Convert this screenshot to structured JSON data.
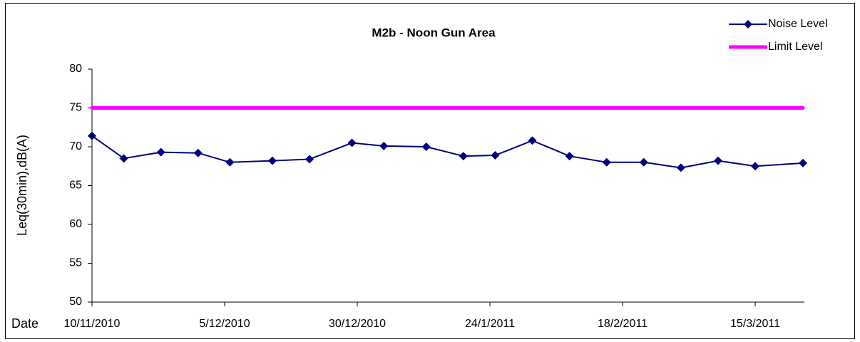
{
  "chart_data": {
    "type": "line",
    "title": "M2b - Noon Gun Area",
    "y_label": "Leq(30min),dB(A)",
    "x_label": "Date",
    "series": [
      {
        "name": "Noise Level",
        "color": "#000080",
        "marker": "diamond",
        "x": [
          "10/11/2010",
          "16/11/2010",
          "23/11/2010",
          "30/11/2010",
          "6/12/2010",
          "14/12/2010",
          "21/12/2010",
          "29/12/2010",
          "4/1/2011",
          "12/1/2011",
          "19/1/2011",
          "25/1/2011",
          "1/2/2011",
          "8/2/2011",
          "15/2/2011",
          "22/2/2011",
          "1/3/2011",
          "8/3/2011",
          "15/3/2011",
          "24/3/2011"
        ],
        "values": [
          71.4,
          68.5,
          69.3,
          69.2,
          68.0,
          68.2,
          68.4,
          70.5,
          70.1,
          70.0,
          68.8,
          68.9,
          70.8,
          68.8,
          68.0,
          68.0,
          67.3,
          68.2,
          67.5,
          67.9
        ]
      },
      {
        "name": "Limit Level",
        "color": "#ff00ff",
        "marker": "none",
        "x": [
          "10/11/2010",
          "24/3/2011"
        ],
        "values": [
          75,
          75
        ]
      }
    ],
    "xlim": [
      "10/11/2010",
      "24/3/2011"
    ],
    "xticks": [
      "10/11/2010",
      "5/12/2010",
      "30/12/2010",
      "24/1/2011",
      "18/2/2011",
      "15/3/2011"
    ],
    "ylim": [
      50,
      80
    ],
    "yticks": [
      50,
      55,
      60,
      65,
      70,
      75,
      80
    ],
    "grid": false,
    "legend": "top-right"
  }
}
